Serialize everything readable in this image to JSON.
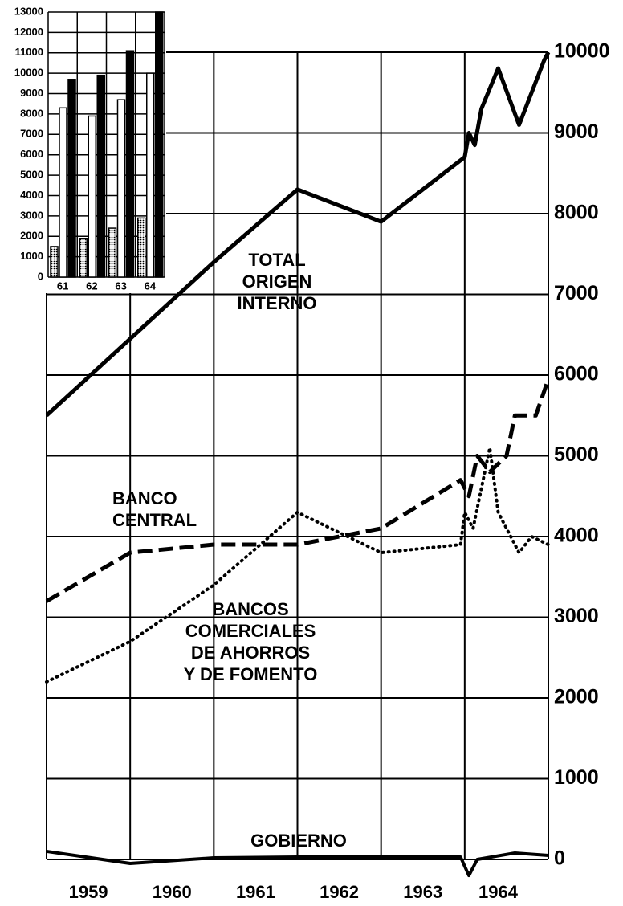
{
  "chart_data": [
    {
      "type": "line",
      "annotations": [
        {
          "lines": [
            "TOTAL",
            "ORIGEN",
            "INTERNO"
          ]
        },
        {
          "lines": [
            "BANCO",
            "CENTRAL"
          ]
        },
        {
          "lines": [
            "BANCOS",
            "COMERCIALES",
            "DE AHORROS",
            "Y DE FOMENTO"
          ]
        },
        {
          "lines": [
            "GOBIERNO"
          ]
        }
      ],
      "xlim": [
        1959,
        1965
      ],
      "xticks": [
        {
          "value": 1959.5,
          "label": "1959"
        },
        {
          "value": 1960.5,
          "label": "1960"
        },
        {
          "value": 1961.5,
          "label": "1961"
        },
        {
          "value": 1962.5,
          "label": "1962"
        },
        {
          "value": 1963.5,
          "label": "1963"
        },
        {
          "value": 1964.4,
          "label": "1964"
        }
      ],
      "ylim": [
        -250,
        10000
      ],
      "yticks": [
        0,
        1000,
        2000,
        3000,
        4000,
        5000,
        6000,
        7000,
        8000,
        9000,
        10000
      ],
      "grid": true,
      "series": [
        {
          "style": "solid",
          "color": "#000000",
          "x": [
            1959,
            1961,
            1962,
            1963,
            1964,
            1964.05,
            1964.12,
            1964.2,
            1964.4,
            1964.65,
            1964.95,
            1965
          ],
          "values": [
            5500,
            7400,
            8300,
            7900,
            8700,
            9000,
            8850,
            9300,
            9800,
            9100,
            9900,
            10000
          ]
        },
        {
          "style": "dashed",
          "color": "#000000",
          "x": [
            1959,
            1960,
            1961,
            1962,
            1963,
            1963.95,
            1964.05,
            1964.15,
            1964.3,
            1964.5,
            1964.6,
            1964.85,
            1965
          ],
          "values": [
            3200,
            3800,
            3900,
            3900,
            4100,
            4700,
            4500,
            5000,
            4800,
            5000,
            5500,
            5500,
            5950
          ]
        },
        {
          "style": "dotted",
          "color": "#000000",
          "x": [
            1959,
            1960,
            1961,
            1962,
            1963,
            1963.95,
            1964.0,
            1964.1,
            1964.3,
            1964.4,
            1964.65,
            1964.8,
            1965
          ],
          "values": [
            2200,
            2700,
            3400,
            4300,
            3800,
            3900,
            4300,
            4100,
            5100,
            4300,
            3800,
            4000,
            3900
          ]
        },
        {
          "style": "thin",
          "color": "#000000",
          "x": [
            1959,
            1960,
            1961,
            1962,
            1963,
            1963.95,
            1964.05,
            1964.15,
            1964.6,
            1965
          ],
          "values": [
            100,
            -50,
            20,
            30,
            30,
            30,
            -200,
            0,
            80,
            50
          ]
        }
      ]
    },
    {
      "type": "bar",
      "categories": [
        "61",
        "62",
        "63",
        "64"
      ],
      "ylim": [
        0,
        13000
      ],
      "yticks": [
        0,
        1000,
        2000,
        3000,
        4000,
        5000,
        6000,
        7000,
        8000,
        9000,
        10000,
        11000,
        12000,
        13000
      ],
      "grid": true,
      "series": [
        {
          "color": "pattern",
          "values": [
            1500,
            1900,
            2400,
            2900
          ]
        },
        {
          "color": "#ffffff",
          "values": [
            8300,
            7900,
            8700,
            10000
          ]
        },
        {
          "color": "#000000",
          "values": [
            9700,
            9900,
            11100,
            13000
          ]
        }
      ]
    }
  ]
}
